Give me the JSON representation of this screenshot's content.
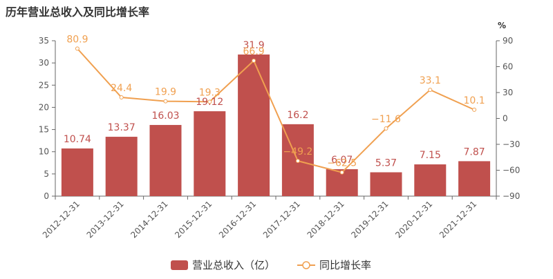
{
  "chart_data": {
    "type": "bar",
    "title": "历年营业总收入及同比增长率",
    "categories": [
      "2012-12-31",
      "2013-12-31",
      "2014-12-31",
      "2015-12-31",
      "2016-12-31",
      "2017-12-31",
      "2018-12-31",
      "2019-12-31",
      "2020-12-31",
      "2021-12-31"
    ],
    "series": [
      {
        "name": "营业总收入（亿）",
        "type": "bar",
        "axis": "left",
        "color": "#c0504d",
        "values": [
          10.74,
          13.37,
          16.03,
          19.12,
          31.9,
          16.2,
          6.07,
          5.37,
          7.15,
          7.87
        ],
        "labels": [
          "10.74",
          "13.37",
          "16.03",
          "19.12",
          "31.9",
          "16.2",
          "6.07",
          "5.37",
          "7.15",
          "7.87"
        ]
      },
      {
        "name": "同比增长率",
        "type": "line",
        "axis": "right",
        "color": "#f0a050",
        "values": [
          80.9,
          24.4,
          19.9,
          19.3,
          66.9,
          -49.2,
          -62.5,
          -11.6,
          33.1,
          10.1
        ],
        "labels": [
          "80.9",
          "24.4",
          "19.9",
          "19.3",
          "66.9",
          "−49.2",
          "−62.5",
          "−11.6",
          "33.1",
          "10.1"
        ]
      }
    ],
    "y_left": {
      "min": 0,
      "max": 35,
      "ticks": [
        0,
        5,
        10,
        15,
        20,
        25,
        30,
        35
      ]
    },
    "y_right": {
      "unit": "%",
      "min": -90,
      "max": 90,
      "ticks": [
        -90,
        -60,
        -30,
        0,
        30,
        60,
        90
      ]
    },
    "legend_position": "bottom-center",
    "grid": false
  }
}
